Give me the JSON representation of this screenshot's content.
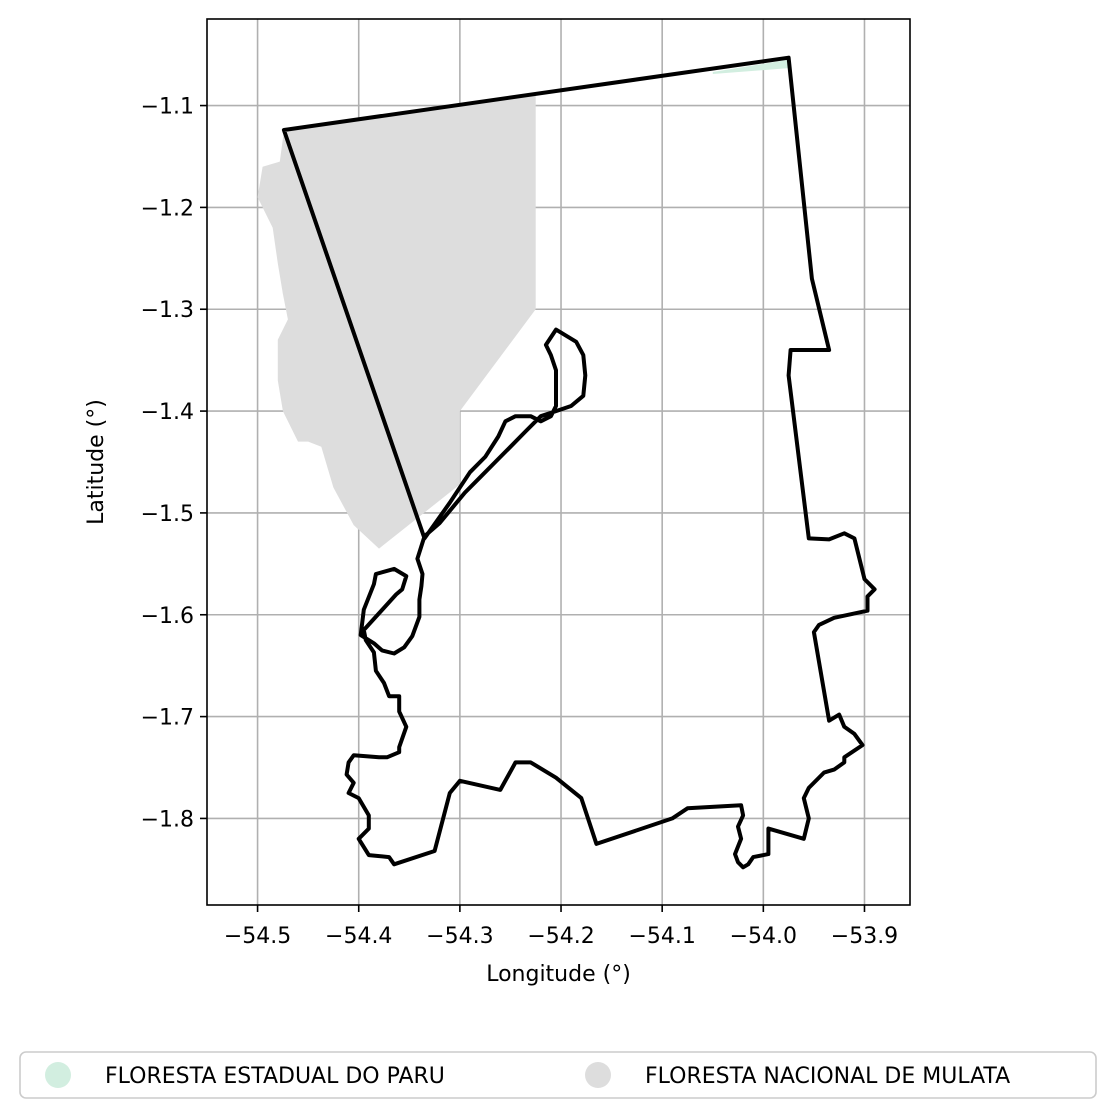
{
  "chart_data": {
    "type": "map",
    "xlabel": "Longitude (°)",
    "ylabel": "Latitude (°)",
    "xlim": [
      -54.55,
      -53.855
    ],
    "ylim": [
      -1.885,
      -1.015
    ],
    "grid": true,
    "x_ticks": [
      -54.5,
      -54.4,
      -54.3,
      -54.2,
      -54.1,
      -54.0,
      -53.9
    ],
    "x_tick_labels": [
      "−54.5",
      "−54.4",
      "−54.3",
      "−54.2",
      "−54.1",
      "−54.0",
      "−53.9"
    ],
    "y_ticks": [
      -1.1,
      -1.2,
      -1.3,
      -1.4,
      -1.5,
      -1.6,
      -1.7,
      -1.8
    ],
    "y_tick_labels": [
      "−1.1",
      "−1.2",
      "−1.3",
      "−1.4",
      "−1.5",
      "−1.6",
      "−1.7",
      "−1.8"
    ],
    "legend_position": "bottom",
    "layers": [
      {
        "name": "FLORESTA ESTADUAL DO PARU",
        "color": "#d2eee0",
        "polygon": [
          [
            -54.05,
            -1.067
          ],
          [
            -53.975,
            -1.055
          ],
          [
            -53.972,
            -1.063
          ],
          [
            -54.05,
            -1.069
          ]
        ]
      },
      {
        "name": "FLORESTA NACIONAL DE MULATA",
        "color": "#dddddd",
        "polygon": [
          [
            -54.474,
            -1.125
          ],
          [
            -54.225,
            -1.09
          ],
          [
            -54.225,
            -1.3
          ],
          [
            -54.3,
            -1.4
          ],
          [
            -54.3,
            -1.472
          ],
          [
            -54.38,
            -1.535
          ],
          [
            -54.405,
            -1.512
          ],
          [
            -54.425,
            -1.475
          ],
          [
            -54.437,
            -1.435
          ],
          [
            -54.45,
            -1.43
          ],
          [
            -54.46,
            -1.43
          ],
          [
            -54.475,
            -1.4
          ],
          [
            -54.48,
            -1.37
          ],
          [
            -54.48,
            -1.33
          ],
          [
            -54.47,
            -1.31
          ],
          [
            -54.475,
            -1.285
          ],
          [
            -54.48,
            -1.255
          ],
          [
            -54.485,
            -1.22
          ],
          [
            -54.5,
            -1.19
          ],
          [
            -54.495,
            -1.16
          ],
          [
            -54.478,
            -1.155
          ],
          [
            -54.474,
            -1.125
          ]
        ]
      }
    ],
    "boundary": {
      "color": "#000000",
      "polygon": [
        [
          -54.474,
          -1.124
        ],
        [
          -53.975,
          -1.053
        ],
        [
          -53.952,
          -1.27
        ],
        [
          -53.935,
          -1.34
        ],
        [
          -53.973,
          -1.34
        ],
        [
          -53.975,
          -1.365
        ],
        [
          -53.955,
          -1.525
        ],
        [
          -53.935,
          -1.526
        ],
        [
          -53.92,
          -1.52
        ],
        [
          -53.91,
          -1.525
        ],
        [
          -53.9,
          -1.565
        ],
        [
          -53.89,
          -1.575
        ],
        [
          -53.897,
          -1.582
        ],
        [
          -53.897,
          -1.596
        ],
        [
          -53.93,
          -1.603
        ],
        [
          -53.945,
          -1.61
        ],
        [
          -53.95,
          -1.617
        ],
        [
          -53.935,
          -1.704
        ],
        [
          -53.925,
          -1.698
        ],
        [
          -53.92,
          -1.71
        ],
        [
          -53.91,
          -1.717
        ],
        [
          -53.902,
          -1.728
        ],
        [
          -53.92,
          -1.74
        ],
        [
          -53.92,
          -1.745
        ],
        [
          -53.93,
          -1.752
        ],
        [
          -53.94,
          -1.755
        ],
        [
          -53.955,
          -1.77
        ],
        [
          -53.96,
          -1.78
        ],
        [
          -53.955,
          -1.8
        ],
        [
          -53.96,
          -1.82
        ],
        [
          -53.995,
          -1.81
        ],
        [
          -53.995,
          -1.835
        ],
        [
          -54.01,
          -1.838
        ],
        [
          -54.015,
          -1.845
        ],
        [
          -54.02,
          -1.848
        ],
        [
          -54.025,
          -1.843
        ],
        [
          -54.028,
          -1.835
        ],
        [
          -54.022,
          -1.82
        ],
        [
          -54.025,
          -1.808
        ],
        [
          -54.02,
          -1.797
        ],
        [
          -54.022,
          -1.787
        ],
        [
          -54.075,
          -1.79
        ],
        [
          -54.09,
          -1.8
        ],
        [
          -54.165,
          -1.825
        ],
        [
          -54.18,
          -1.78
        ],
        [
          -54.205,
          -1.76
        ],
        [
          -54.23,
          -1.745
        ],
        [
          -54.245,
          -1.745
        ],
        [
          -54.26,
          -1.772
        ],
        [
          -54.3,
          -1.763
        ],
        [
          -54.31,
          -1.775
        ],
        [
          -54.325,
          -1.832
        ],
        [
          -54.365,
          -1.845
        ],
        [
          -54.37,
          -1.838
        ],
        [
          -54.39,
          -1.836
        ],
        [
          -54.4,
          -1.82
        ],
        [
          -54.39,
          -1.81
        ],
        [
          -54.39,
          -1.797
        ],
        [
          -54.4,
          -1.78
        ],
        [
          -54.41,
          -1.775
        ],
        [
          -54.405,
          -1.765
        ],
        [
          -54.412,
          -1.757
        ],
        [
          -54.41,
          -1.745
        ],
        [
          -54.405,
          -1.738
        ],
        [
          -54.38,
          -1.74
        ],
        [
          -54.372,
          -1.74
        ],
        [
          -54.36,
          -1.735
        ],
        [
          -54.36,
          -1.73
        ],
        [
          -54.353,
          -1.71
        ],
        [
          -54.36,
          -1.695
        ],
        [
          -54.36,
          -1.68
        ],
        [
          -54.37,
          -1.68
        ],
        [
          -54.375,
          -1.667
        ],
        [
          -54.383,
          -1.655
        ],
        [
          -54.385,
          -1.637
        ],
        [
          -54.393,
          -1.625
        ],
        [
          -54.395,
          -1.615
        ],
        [
          -54.363,
          -1.58
        ],
        [
          -54.357,
          -1.575
        ],
        [
          -54.353,
          -1.562
        ],
        [
          -54.365,
          -1.555
        ],
        [
          -54.383,
          -1.56
        ],
        [
          -54.385,
          -1.57
        ],
        [
          -54.395,
          -1.595
        ],
        [
          -54.398,
          -1.62
        ],
        [
          -54.385,
          -1.628
        ],
        [
          -54.377,
          -1.635
        ],
        [
          -54.365,
          -1.638
        ],
        [
          -54.355,
          -1.632
        ],
        [
          -54.347,
          -1.621
        ],
        [
          -54.34,
          -1.602
        ],
        [
          -54.34,
          -1.585
        ],
        [
          -54.338,
          -1.572
        ],
        [
          -54.337,
          -1.56
        ],
        [
          -54.342,
          -1.545
        ],
        [
          -54.335,
          -1.523
        ],
        [
          -54.32,
          -1.51
        ],
        [
          -54.295,
          -1.48
        ],
        [
          -54.28,
          -1.465
        ],
        [
          -54.265,
          -1.45
        ],
        [
          -54.248,
          -1.433
        ],
        [
          -54.235,
          -1.42
        ],
        [
          -54.22,
          -1.405
        ],
        [
          -54.205,
          -1.4
        ],
        [
          -54.19,
          -1.395
        ],
        [
          -54.178,
          -1.385
        ],
        [
          -54.176,
          -1.365
        ],
        [
          -54.178,
          -1.345
        ],
        [
          -54.185,
          -1.332
        ],
        [
          -54.205,
          -1.32
        ],
        [
          -54.215,
          -1.335
        ],
        [
          -54.21,
          -1.345
        ],
        [
          -54.205,
          -1.36
        ],
        [
          -54.205,
          -1.385
        ],
        [
          -54.205,
          -1.395
        ],
        [
          -54.21,
          -1.405
        ],
        [
          -54.22,
          -1.41
        ],
        [
          -54.23,
          -1.405
        ],
        [
          -54.245,
          -1.405
        ],
        [
          -54.255,
          -1.41
        ],
        [
          -54.262,
          -1.425
        ],
        [
          -54.275,
          -1.445
        ],
        [
          -54.29,
          -1.46
        ],
        [
          -54.31,
          -1.49
        ],
        [
          -54.335,
          -1.525
        ]
      ]
    }
  }
}
